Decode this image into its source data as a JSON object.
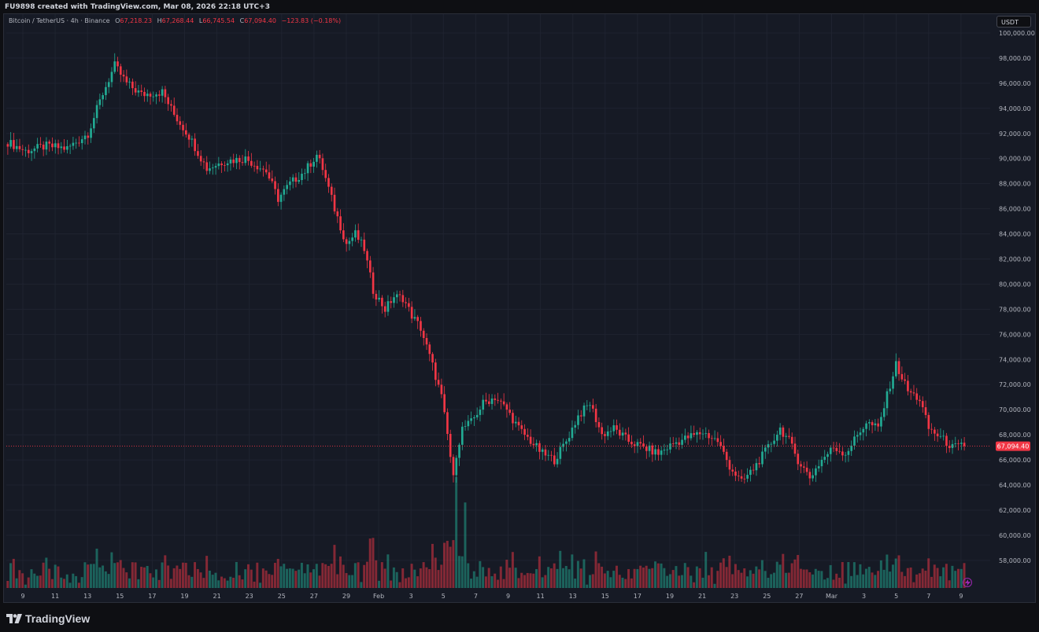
{
  "header": {
    "created_text": "FU9898 created with TradingView.com, Mar 08, 2026 22:18 UTC+3"
  },
  "legend": {
    "symbol": "Bitcoin / TetherUS · 4h · Binance",
    "o_label": "O",
    "o_value": "67,218.23",
    "h_label": "H",
    "h_value": "67,268.44",
    "l_label": "L",
    "l_value": "66,745.54",
    "c_label": "C",
    "c_value": "67,094.40",
    "change": "−123.83 (−0.18%)"
  },
  "currency_button": "USDT",
  "brand": "TradingView",
  "colors": {
    "up": "#22ab94",
    "down": "#f23645",
    "background": "#161a25",
    "grid": "#1f2330",
    "axis_text": "#b2b5be"
  },
  "icons": [
    "tradingview-logo-icon",
    "lightning-icon"
  ],
  "chart_data": {
    "type": "candlestick",
    "title": "Bitcoin / TetherUS · 4h · Binance",
    "price_ticks": [
      "100,000.00",
      "98,000.00",
      "96,000.00",
      "94,000.00",
      "92,000.00",
      "90,000.00",
      "88,000.00",
      "86,000.00",
      "84,000.00",
      "82,000.00",
      "80,000.00",
      "78,000.00",
      "76,000.00",
      "74,000.00",
      "72,000.00",
      "70,000.00",
      "68,000.00",
      "66,000.00",
      "64,000.00",
      "62,000.00",
      "60,000.00",
      "58,000.00"
    ],
    "ylim": [
      55800,
      101500
    ],
    "time_ticks": [
      "9",
      "11",
      "13",
      "15",
      "17",
      "19",
      "21",
      "23",
      "25",
      "27",
      "29",
      "Feb",
      "3",
      "5",
      "7",
      "9",
      "11",
      "13",
      "15",
      "17",
      "19",
      "21",
      "23",
      "25",
      "27",
      "Mar",
      "3",
      "5",
      "7",
      "9"
    ],
    "last_price": "67,094.40",
    "grid": true,
    "close_path": [
      [
        0,
        91300
      ],
      [
        6,
        90600
      ],
      [
        13,
        91000
      ],
      [
        20,
        90800
      ],
      [
        27,
        92000
      ],
      [
        32,
        95200
      ],
      [
        36,
        97400
      ],
      [
        40,
        96000
      ],
      [
        45,
        95100
      ],
      [
        52,
        95300
      ],
      [
        56,
        93500
      ],
      [
        61,
        91800
      ],
      [
        67,
        89200
      ],
      [
        73,
        89800
      ],
      [
        80,
        90000
      ],
      [
        87,
        89000
      ],
      [
        91,
        86800
      ],
      [
        95,
        88000
      ],
      [
        100,
        89000
      ],
      [
        104,
        90300
      ],
      [
        106,
        89200
      ],
      [
        110,
        86000
      ],
      [
        114,
        83200
      ],
      [
        117,
        84000
      ],
      [
        120,
        82800
      ],
      [
        123,
        79500
      ],
      [
        127,
        78000
      ],
      [
        130,
        79000
      ],
      [
        133,
        78900
      ],
      [
        136,
        77500
      ],
      [
        139,
        76500
      ],
      [
        143,
        73500
      ],
      [
        146,
        71000
      ],
      [
        148,
        68000
      ],
      [
        150,
        64500
      ],
      [
        151,
        66500
      ],
      [
        153,
        68500
      ],
      [
        156,
        69000
      ],
      [
        160,
        70500
      ],
      [
        164,
        71000
      ],
      [
        168,
        70000
      ],
      [
        172,
        68500
      ],
      [
        176,
        67500
      ],
      [
        180,
        66500
      ],
      [
        184,
        66000
      ],
      [
        188,
        67500
      ],
      [
        192,
        69500
      ],
      [
        196,
        70500
      ],
      [
        200,
        68000
      ],
      [
        204,
        68500
      ],
      [
        209,
        67500
      ],
      [
        214,
        67000
      ],
      [
        219,
        66500
      ],
      [
        224,
        67300
      ],
      [
        229,
        67800
      ],
      [
        234,
        68200
      ],
      [
        239,
        67500
      ],
      [
        243,
        65500
      ],
      [
        247,
        64200
      ],
      [
        251,
        65300
      ],
      [
        256,
        67000
      ],
      [
        260,
        68500
      ],
      [
        263,
        67500
      ],
      [
        266,
        66000
      ],
      [
        270,
        64600
      ],
      [
        274,
        66000
      ],
      [
        278,
        67000
      ],
      [
        282,
        66500
      ],
      [
        285,
        67600
      ],
      [
        289,
        69000
      ],
      [
        293,
        68500
      ],
      [
        297,
        72000
      ],
      [
        299,
        73600
      ],
      [
        303,
        71500
      ],
      [
        307,
        70800
      ],
      [
        310,
        68500
      ],
      [
        314,
        67800
      ],
      [
        318,
        67000
      ],
      [
        322,
        67094
      ]
    ],
    "volume_peaks": [
      {
        "bar": 122,
        "relative": 0.37
      },
      {
        "bar": 143,
        "relative": 0.33
      },
      {
        "bar": 151,
        "relative": 0.83
      },
      {
        "bar": 154,
        "relative": 0.64
      },
      {
        "bar": 235,
        "relative": 0.27
      },
      {
        "bar": 296,
        "relative": 0.25
      }
    ]
  }
}
